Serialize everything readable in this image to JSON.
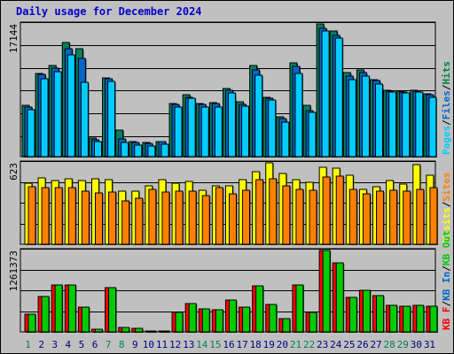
{
  "chart_data": [
    {
      "type": "bar",
      "title": "Daily usage for December 2024",
      "ymax_label": "17144",
      "legend": [
        {
          "label": "Pages",
          "color": "#00ccff"
        },
        {
          "label": "Files",
          "color": "#0066cc"
        },
        {
          "label": "Hits",
          "color": "#008040"
        }
      ],
      "separators": [
        "/",
        "/"
      ],
      "categories": [
        "1",
        "2",
        "3",
        "4",
        "5",
        "6",
        "7",
        "8",
        "9",
        "10",
        "11",
        "12",
        "13",
        "14",
        "15",
        "16",
        "17",
        "18",
        "19",
        "20",
        "21",
        "22",
        "23",
        "24",
        "25",
        "26",
        "27",
        "28",
        "29",
        "30",
        "31"
      ],
      "weekend_days": [
        "1",
        "7",
        "8",
        "14",
        "15",
        "21",
        "22",
        "28",
        "29"
      ],
      "series": [
        {
          "name": "Hits",
          "color": "#008060",
          "values": [
            6600,
            10800,
            11800,
            14800,
            13900,
            2400,
            10200,
            3400,
            1900,
            1800,
            1900,
            6900,
            8000,
            6900,
            7000,
            8800,
            7100,
            11800,
            7700,
            5100,
            12100,
            6600,
            17144,
            16200,
            10900,
            11200,
            9900,
            8600,
            8500,
            8600,
            8100
          ]
        },
        {
          "name": "Files",
          "color": "#0066cc",
          "values": [
            6400,
            10600,
            11400,
            13900,
            12700,
            2200,
            10100,
            2300,
            1800,
            1700,
            1900,
            6700,
            7700,
            6800,
            6900,
            8600,
            6800,
            11200,
            7600,
            4900,
            11700,
            6000,
            16600,
            15700,
            10400,
            10900,
            9800,
            8500,
            8400,
            8500,
            8000
          ]
        },
        {
          "name": "Pages",
          "color": "#00ccff",
          "values": [
            6100,
            10100,
            11000,
            13100,
            9600,
            1900,
            9700,
            1800,
            1500,
            1400,
            1600,
            6400,
            7500,
            6400,
            6400,
            8200,
            6500,
            10500,
            7300,
            4500,
            10800,
            5700,
            16200,
            15300,
            9900,
            10400,
            9400,
            8400,
            8200,
            8300,
            7700
          ]
        }
      ]
    },
    {
      "type": "bar",
      "ymax_label": "623",
      "legend": [
        {
          "label": "Visits",
          "color": "#ffff00"
        },
        {
          "label": "Sites",
          "color": "#ff8000"
        }
      ],
      "separators": [
        "/"
      ],
      "categories": [
        "1",
        "2",
        "3",
        "4",
        "5",
        "6",
        "7",
        "8",
        "9",
        "10",
        "11",
        "12",
        "13",
        "14",
        "15",
        "16",
        "17",
        "18",
        "19",
        "20",
        "21",
        "22",
        "23",
        "24",
        "25",
        "26",
        "27",
        "28",
        "29",
        "30",
        "31"
      ],
      "series": [
        {
          "name": "Visits",
          "color": "#ffff00",
          "values": [
            470,
            506,
            487,
            500,
            487,
            503,
            494,
            404,
            409,
            444,
            491,
            466,
            480,
            414,
            446,
            447,
            494,
            555,
            623,
            542,
            496,
            473,
            590,
            582,
            528,
            421,
            441,
            485,
            461,
            608,
            530
          ]
        },
        {
          "name": "Sites",
          "color": "#ff8000",
          "values": [
            440,
            433,
            433,
            435,
            403,
            392,
            398,
            332,
            352,
            420,
            402,
            409,
            403,
            370,
            434,
            386,
            413,
            491,
            499,
            445,
            420,
            411,
            516,
            520,
            421,
            385,
            403,
            411,
            404,
            422,
            436
          ]
        }
      ]
    },
    {
      "type": "bar",
      "ymax_label": "1261373",
      "legend": [
        {
          "label": "KB F",
          "color": "#ff0000"
        },
        {
          "label": "KB In",
          "color": "#0066cc"
        },
        {
          "label": "KB Out",
          "color": "#00cc00"
        }
      ],
      "separators": [
        "/",
        "/"
      ],
      "categories": [
        "1",
        "2",
        "3",
        "4",
        "5",
        "6",
        "7",
        "8",
        "9",
        "10",
        "11",
        "12",
        "13",
        "14",
        "15",
        "16",
        "17",
        "18",
        "19",
        "20",
        "21",
        "22",
        "23",
        "24",
        "25",
        "26",
        "27",
        "28",
        "29",
        "30",
        "31"
      ],
      "series": [
        {
          "name": "KB F",
          "color": "#ff0000",
          "values": [
            270000,
            550000,
            730000,
            730000,
            380000,
            40000,
            680000,
            70000,
            50000,
            20000,
            10000,
            300000,
            440000,
            360000,
            340000,
            490000,
            380000,
            710000,
            420000,
            200000,
            720000,
            300000,
            1261373,
            1070000,
            540000,
            640000,
            560000,
            410000,
            400000,
            410000,
            400000
          ]
        },
        {
          "name": "KB Out",
          "color": "#00cc00",
          "values": [
            270000,
            550000,
            730000,
            730000,
            380000,
            40000,
            680000,
            70000,
            50000,
            20000,
            10000,
            300000,
            440000,
            360000,
            340000,
            490000,
            380000,
            710000,
            420000,
            200000,
            720000,
            300000,
            1261373,
            1070000,
            540000,
            640000,
            560000,
            410000,
            400000,
            410000,
            400000
          ]
        }
      ]
    }
  ]
}
